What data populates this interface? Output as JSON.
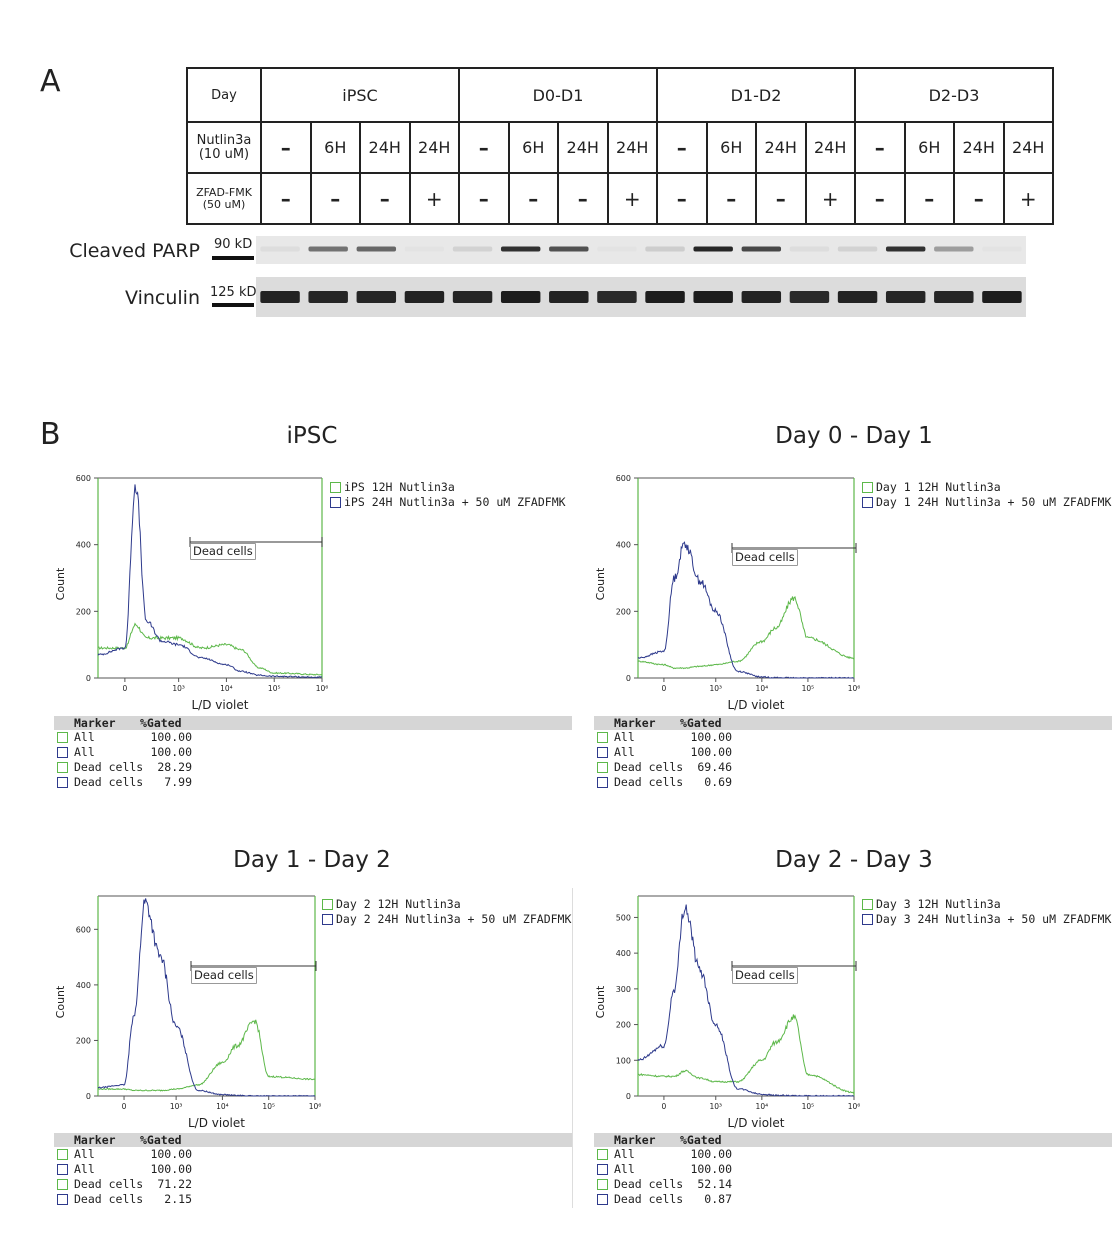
{
  "panelA": {
    "letter": "A",
    "table": {
      "row_labels": {
        "day": "Day",
        "nutlin_line1": "Nutlin3a",
        "nutlin_line2": "(10 uM)",
        "zfad_line1": "ZFAD-FMK",
        "zfad_line2": "(50 uM)"
      },
      "groups": [
        "iPSC",
        "D0-D1",
        "D1-D2",
        "D2-D3"
      ],
      "nutlin": [
        "–",
        "6H",
        "24H",
        "24H"
      ],
      "zfad": [
        "–",
        "–",
        "–",
        "+"
      ]
    },
    "blots": [
      {
        "label": "Cleaved PARP",
        "kd": "90 kD",
        "intensity": [
          0.05,
          0.55,
          0.6,
          0.02,
          0.1,
          0.85,
          0.7,
          0.02,
          0.12,
          0.9,
          0.75,
          0.05,
          0.1,
          0.85,
          0.35,
          0.02
        ]
      },
      {
        "label": "Vinculin",
        "kd": "125 kD",
        "intensity": [
          0.92,
          0.9,
          0.9,
          0.92,
          0.9,
          0.95,
          0.92,
          0.88,
          0.95,
          0.95,
          0.92,
          0.88,
          0.92,
          0.9,
          0.9,
          0.95
        ]
      }
    ]
  },
  "panelB": {
    "letter": "B",
    "plots": [
      {
        "title": "iPSC",
        "legend": [
          "iPS 12H Nutlin3a",
          "iPS 24H Nutlin3a + 50 uM ZFADFMK"
        ],
        "ymax": 600,
        "yticks": [
          0,
          200,
          400,
          600
        ],
        "stats": [
          [
            "All",
            "100.00"
          ],
          [
            "All",
            "100.00"
          ],
          [
            "Dead cells",
            "28.29"
          ],
          [
            "Dead cells",
            "7.99"
          ]
        ]
      },
      {
        "title": "Day 0 - Day 1",
        "legend": [
          "Day 1 12H Nutlin3a",
          "Day 1 24H Nutlin3a + 50 uM ZFADFMK"
        ],
        "ymax": 600,
        "yticks": [
          0,
          200,
          400,
          600
        ],
        "stats": [
          [
            "All",
            "100.00"
          ],
          [
            "All",
            "100.00"
          ],
          [
            "Dead cells",
            "69.46"
          ],
          [
            "Dead cells",
            "0.69"
          ]
        ]
      },
      {
        "title": "Day 1 - Day 2",
        "legend": [
          "Day 2 12H Nutlin3a",
          "Day 2 24H Nutlin3a + 50 uM ZFADFMK"
        ],
        "ymax": 720,
        "yticks": [
          0,
          200,
          400,
          600
        ],
        "stats": [
          [
            "All",
            "100.00"
          ],
          [
            "All",
            "100.00"
          ],
          [
            "Dead cells",
            "71.22"
          ],
          [
            "Dead cells",
            "2.15"
          ]
        ]
      },
      {
        "title": "Day 2 - Day 3",
        "legend": [
          "Day 3 12H Nutlin3a",
          "Day 3 24H Nutlin3a + 50 uM ZFADFMK"
        ],
        "ymax": 560,
        "yticks": [
          0,
          100,
          200,
          300,
          400,
          500
        ],
        "stats": [
          [
            "All",
            "100.00"
          ],
          [
            "All",
            "100.00"
          ],
          [
            "Dead cells",
            "52.14"
          ],
          [
            "Dead cells",
            "0.87"
          ]
        ]
      }
    ],
    "xlabel": "L/D violet",
    "ylabel": "Count",
    "xticks": [
      "0",
      "10³",
      "10⁴",
      "10⁵",
      "10⁶"
    ],
    "gate_label": "Dead cells",
    "stats_header": [
      "Marker",
      "%Gated"
    ],
    "colors": {
      "green": "#5db84a",
      "blue": "#2e3a8c"
    }
  },
  "chart_data": [
    {
      "type": "line",
      "title": "iPSC",
      "xlabel": "L/D violet",
      "ylabel": "Count",
      "ylim": [
        0,
        600
      ],
      "x_scale": "biexponential",
      "x": [
        -300,
        0,
        200,
        400,
        700,
        1000,
        3000,
        10000,
        20000,
        50000,
        100000,
        1000000
      ],
      "series": [
        {
          "name": "iPS 12H Nutlin3a",
          "color": "green",
          "values": [
            90,
            90,
            160,
            120,
            120,
            120,
            90,
            100,
            85,
            30,
            15,
            10
          ]
        },
        {
          "name": "iPS 24H Nutlin3a + 50 uM ZFADFMK",
          "color": "blue",
          "values": [
            70,
            90,
            580,
            170,
            110,
            100,
            60,
            40,
            20,
            8,
            5,
            2
          ]
        }
      ]
    },
    {
      "type": "line",
      "title": "Day 0 - Day 1",
      "xlabel": "L/D violet",
      "ylabel": "Count",
      "ylim": [
        0,
        600
      ],
      "x_scale": "biexponential",
      "x": [
        -300,
        0,
        200,
        400,
        700,
        1000,
        3000,
        10000,
        20000,
        50000,
        100000,
        1000000
      ],
      "series": [
        {
          "name": "Day 1 12H Nutlin3a",
          "color": "green",
          "values": [
            50,
            40,
            30,
            30,
            35,
            40,
            50,
            110,
            150,
            240,
            120,
            60
          ]
        },
        {
          "name": "Day 1 24H Nutlin3a + 50 uM ZFADFMK",
          "color": "blue",
          "values": [
            60,
            80,
            300,
            405,
            290,
            200,
            20,
            3,
            1,
            0,
            0,
            0
          ]
        }
      ]
    },
    {
      "type": "line",
      "title": "Day 1 - Day 2",
      "xlabel": "L/D violet",
      "ylabel": "Count",
      "ylim": [
        0,
        720
      ],
      "x_scale": "biexponential",
      "x": [
        -300,
        0,
        200,
        400,
        700,
        1000,
        3000,
        10000,
        20000,
        50000,
        100000,
        1000000
      ],
      "series": [
        {
          "name": "Day 2 12H Nutlin3a",
          "color": "green",
          "values": [
            25,
            25,
            20,
            20,
            20,
            25,
            40,
            120,
            180,
            270,
            70,
            60
          ]
        },
        {
          "name": "Day 2 24H Nutlin3a + 50 uM ZFADFMK",
          "color": "blue",
          "values": [
            30,
            40,
            300,
            700,
            500,
            250,
            20,
            5,
            2,
            0,
            0,
            0
          ]
        }
      ]
    },
    {
      "type": "line",
      "title": "Day 2 - Day 3",
      "xlabel": "L/D violet",
      "ylabel": "Count",
      "ylim": [
        0,
        560
      ],
      "x_scale": "biexponential",
      "x": [
        -300,
        0,
        200,
        400,
        700,
        1000,
        3000,
        10000,
        20000,
        50000,
        100000,
        1000000
      ],
      "series": [
        {
          "name": "Day 3 12H Nutlin3a",
          "color": "green",
          "values": [
            60,
            55,
            55,
            70,
            50,
            40,
            40,
            100,
            150,
            220,
            60,
            10
          ]
        },
        {
          "name": "Day 3 24H Nutlin3a + 50 uM ZFADFMK",
          "color": "blue",
          "values": [
            100,
            140,
            300,
            530,
            350,
            200,
            20,
            5,
            2,
            0,
            0,
            0
          ]
        }
      ]
    }
  ]
}
